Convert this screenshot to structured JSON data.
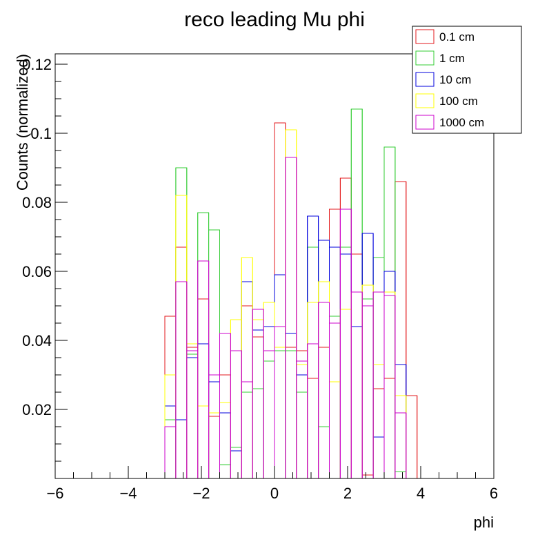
{
  "chart_data": {
    "type": "histogram",
    "title": "reco leading Mu phi",
    "xlabel": "phi",
    "ylabel": "Counts (normalized)",
    "xlim": [
      -6,
      6
    ],
    "ylim": [
      0,
      0.123
    ],
    "xticks": [
      -6,
      -4,
      -2,
      0,
      2,
      4,
      6
    ],
    "xtick_labels": [
      "−6",
      "−4",
      "−2",
      "0",
      "2",
      "4",
      "6"
    ],
    "yticks": [
      0.02,
      0.04,
      0.06,
      0.08,
      0.1,
      0.12
    ],
    "ytick_labels": [
      "0.02",
      "0.04",
      "0.06",
      "0.08",
      "0.1",
      "0.12"
    ],
    "grid": false,
    "legend_position": "top-right",
    "bin_width": 0.3,
    "bin_start": -6.0,
    "series": [
      {
        "name": "0.1 cm",
        "color": "#e31a1c",
        "values": [
          0,
          0,
          0,
          0,
          0,
          0,
          0,
          0,
          0,
          0,
          0.047,
          0.067,
          0.038,
          0.052,
          0.018,
          0.03,
          0.009,
          0.05,
          0.041,
          0.034,
          0.103,
          0.038,
          0.037,
          0.029,
          0.038,
          0.078,
          0.087,
          0.065,
          0.001,
          0.026,
          0.029,
          0.086,
          0.024,
          0,
          0,
          0,
          0,
          0,
          0,
          0
        ]
      },
      {
        "name": "1 cm",
        "color": "#33cc33",
        "values": [
          0,
          0,
          0,
          0,
          0,
          0,
          0,
          0,
          0,
          0,
          0.017,
          0.09,
          0.036,
          0.077,
          0.072,
          0.004,
          0.009,
          0.025,
          0.026,
          0.034,
          0.037,
          0.037,
          0.025,
          0.067,
          0.015,
          0.047,
          0.067,
          0.107,
          0.052,
          0.064,
          0.096,
          0.002,
          0,
          0,
          0,
          0,
          0,
          0,
          0,
          0
        ]
      },
      {
        "name": "10 cm",
        "color": "#0000dd",
        "values": [
          0,
          0,
          0,
          0,
          0,
          0,
          0,
          0,
          0,
          0,
          0.021,
          0.017,
          0.035,
          0.039,
          0.028,
          0.019,
          0.008,
          0.057,
          0.043,
          0.044,
          0.059,
          0.042,
          0.03,
          0.076,
          0.069,
          0.067,
          0.065,
          0.044,
          0.071,
          0.012,
          0.06,
          0.033,
          0,
          0,
          0,
          0,
          0,
          0,
          0,
          0
        ]
      },
      {
        "name": "100 cm",
        "color": "#ffff00",
        "values": [
          0,
          0,
          0,
          0,
          0,
          0,
          0,
          0,
          0,
          0,
          0.03,
          0.082,
          0.039,
          0.021,
          0.019,
          0.022,
          0.046,
          0.064,
          0.046,
          0.051,
          0.038,
          0.101,
          0.033,
          0.051,
          0.057,
          0.028,
          0.049,
          0.054,
          0.056,
          0.033,
          0.054,
          0.024,
          0,
          0,
          0,
          0,
          0,
          0,
          0,
          0
        ]
      },
      {
        "name": "1000 cm",
        "color": "#cc00cc",
        "values": [
          0,
          0,
          0,
          0,
          0,
          0,
          0,
          0,
          0,
          0,
          0.015,
          0.057,
          0.037,
          0.063,
          0.03,
          0.042,
          0.037,
          0.028,
          0.049,
          0.037,
          0.044,
          0.093,
          0.034,
          0.039,
          0.051,
          0.045,
          0.078,
          0.054,
          0.05,
          0.054,
          0.053,
          0.019,
          0,
          0,
          0,
          0,
          0,
          0,
          0,
          0
        ]
      }
    ]
  }
}
